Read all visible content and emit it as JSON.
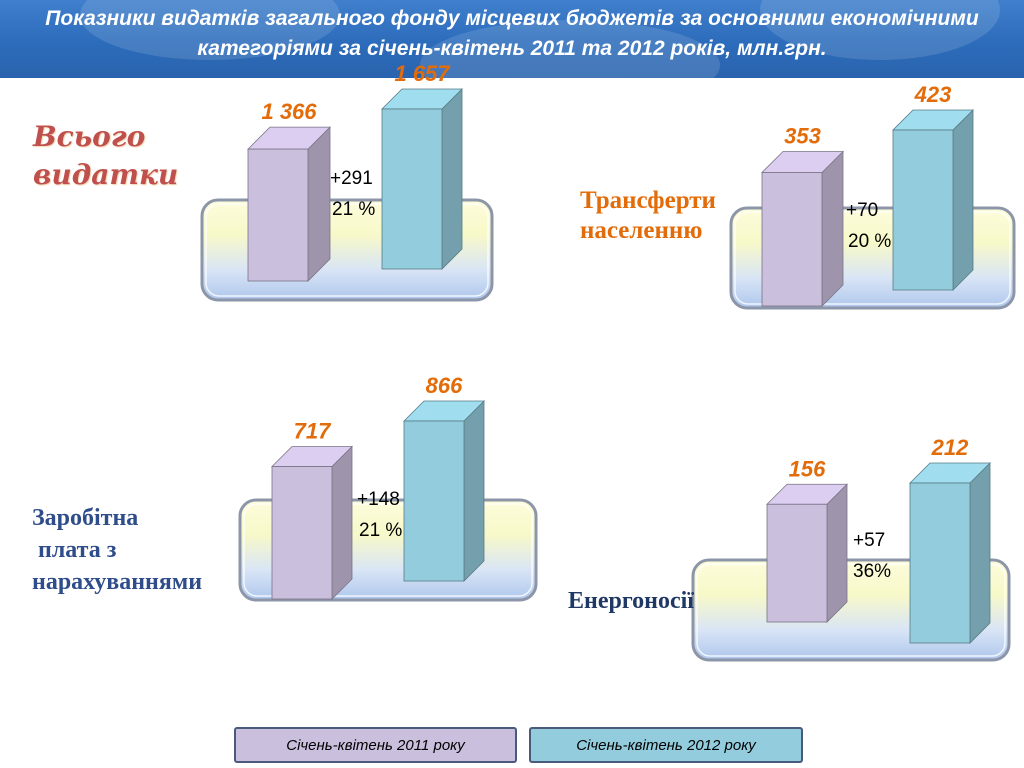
{
  "header": {
    "title": "Показники видатків загального фонду місцевих бюджетів за основними економічними категоріями за січень-квітень 2011 та 2012 років, млн.грн."
  },
  "colors": {
    "series_2011": "#cbbfde",
    "series_2012": "#93cddd",
    "value_label": "#e36c0a"
  },
  "legend": [
    {
      "label": "Січень-квітень 2011 року",
      "color": "#cbbfde"
    },
    {
      "label": "Січень-квітень 2012 року",
      "color": "#93cddd"
    }
  ],
  "chart_data": [
    {
      "type": "bar",
      "title": "Всього\nвидатки",
      "title_color": "#c0504d",
      "categories": [
        "Січень-квітень 2011 року",
        "Січень-квітень 2012 року"
      ],
      "values": [
        1366,
        1657
      ],
      "value_labels": [
        "1 366",
        "1 657"
      ],
      "change": {
        "absolute": "+291",
        "percent": "21 %"
      }
    },
    {
      "type": "bar",
      "title": "Трансферти\nнаселенню",
      "title_color": "#e36c0a",
      "categories": [
        "Січень-квітень 2011 року",
        "Січень-квітень 2012 року"
      ],
      "values": [
        353,
        423
      ],
      "value_labels": [
        "353",
        "423"
      ],
      "change": {
        "absolute": "+70",
        "percent": "20 %"
      }
    },
    {
      "type": "bar",
      "title": "Заробітна\n плата з\nнарахуваннями",
      "title_color": "#2e4d8a",
      "categories": [
        "Січень-квітень 2011 року",
        "Січень-квітень 2012 року"
      ],
      "values": [
        717,
        866
      ],
      "value_labels": [
        "717",
        "866"
      ],
      "change": {
        "absolute": "+148",
        "percent": "21 %"
      }
    },
    {
      "type": "bar",
      "title": "Енергоносії",
      "title_color": "#1f3864",
      "categories": [
        "Січень-квітень 2011 року",
        "Січень-квітень 2012 року"
      ],
      "values": [
        156,
        212
      ],
      "value_labels": [
        "156",
        "212"
      ],
      "change": {
        "absolute": "+57",
        "percent": "36%"
      }
    }
  ]
}
